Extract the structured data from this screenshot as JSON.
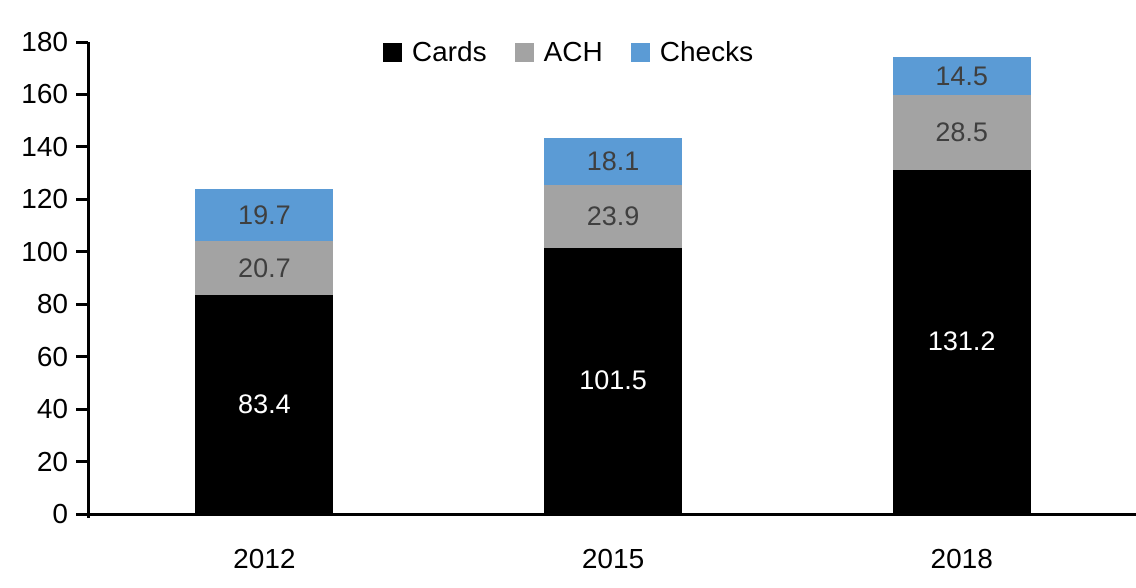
{
  "chart_data": {
    "type": "bar",
    "stacked": true,
    "title": "",
    "xlabel": "",
    "ylabel": "",
    "categories": [
      "2012",
      "2015",
      "2018"
    ],
    "series": [
      {
        "name": "Cards",
        "values": [
          83.4,
          101.5,
          131.2
        ],
        "color": "#000000",
        "label_color": "#FFFFFF"
      },
      {
        "name": "ACH",
        "values": [
          20.7,
          23.9,
          28.5
        ],
        "color": "#A3A3A3",
        "label_color": "#3F3F3F"
      },
      {
        "name": "Checks",
        "values": [
          19.7,
          18.1,
          14.5
        ],
        "color": "#5B9BD5",
        "label_color": "#3F3F3F"
      }
    ],
    "totals": [
      123.8,
      143.5,
      174.2
    ],
    "ylim": [
      0,
      180
    ],
    "ytick_step": 20,
    "yticks": [
      0,
      20,
      40,
      60,
      80,
      100,
      120,
      140,
      160,
      180
    ],
    "grid": false,
    "legend_position": "top-center",
    "value_label_format": "one-decimal"
  },
  "colors": {
    "axis": "#000000",
    "background": "#FFFFFF"
  }
}
